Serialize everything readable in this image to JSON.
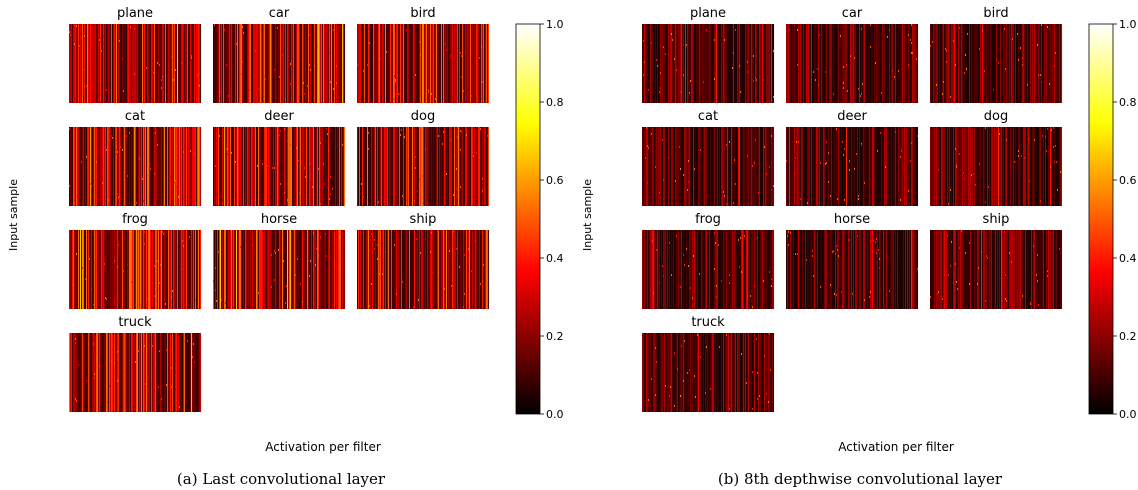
{
  "chart_data": [
    {
      "type": "heatmap",
      "caption": "(a) Last convolutional layer",
      "xlabel": "Activation per filter",
      "ylabel": "Input sample",
      "categories": [
        "plane",
        "car",
        "bird",
        "cat",
        "deer",
        "dog",
        "frog",
        "horse",
        "ship",
        "truck"
      ],
      "colormap": "hot",
      "colorbar": {
        "range": [
          0.0,
          1.0
        ],
        "ticks": [
          "0.0",
          "0.2",
          "0.4",
          "0.6",
          "0.8",
          "1.0"
        ]
      },
      "typical_activation": 0.2,
      "grid": false
    },
    {
      "type": "heatmap",
      "caption": "(b) 8th depthwise convolutional layer",
      "xlabel": "Activation per filter",
      "ylabel": "Input sample",
      "categories": [
        "plane",
        "car",
        "bird",
        "cat",
        "deer",
        "dog",
        "frog",
        "horse",
        "ship",
        "truck"
      ],
      "colormap": "hot",
      "colorbar": {
        "range": [
          0.0,
          1.0
        ],
        "ticks": [
          "0.0",
          "0.2",
          "0.4",
          "0.6",
          "0.8",
          "1.0"
        ]
      },
      "typical_activation": 0.1,
      "grid": false
    }
  ]
}
